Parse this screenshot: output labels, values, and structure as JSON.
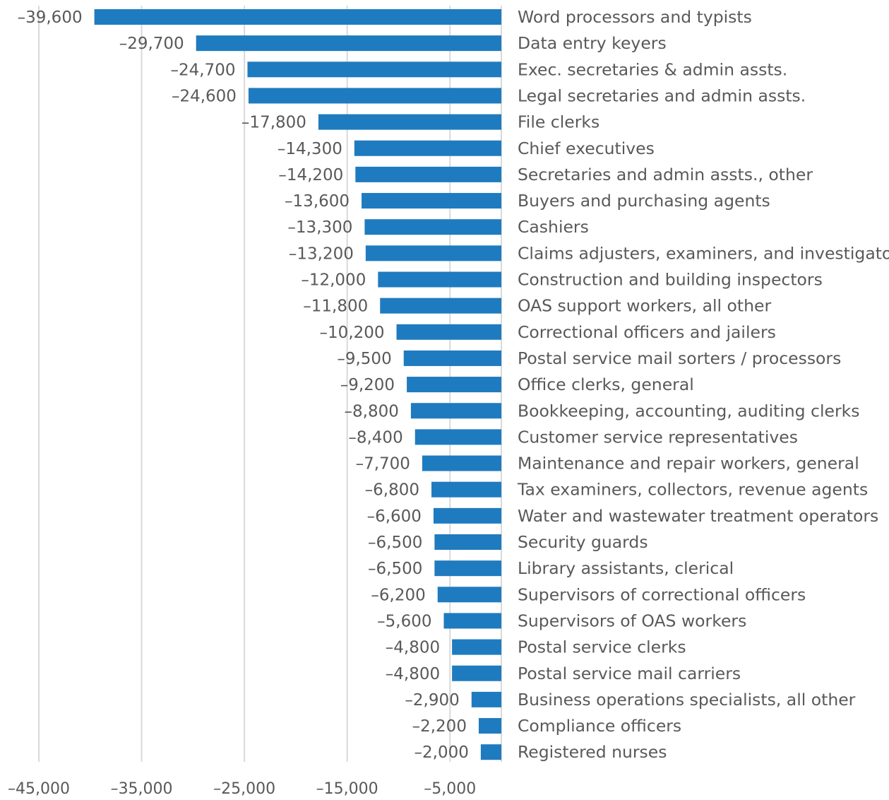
{
  "chart_data": {
    "type": "bar",
    "orientation": "horizontal",
    "title": "",
    "xlabel": "",
    "ylabel": "",
    "xlim": [
      -45000,
      0
    ],
    "xticks": [
      -45000,
      -35000,
      -25000,
      -15000,
      -5000
    ],
    "xtick_labels": [
      "–45,000",
      "–35,000",
      "–25,000",
      "–15,000",
      "–5,000"
    ],
    "grid": true,
    "legend": "none",
    "bar_color": "#1f7bbf",
    "categories": [
      "Word processors and typists",
      "Data entry keyers",
      "Exec. secretaries & admin assts.",
      "Legal secretaries and admin assts.",
      "File clerks",
      "Chief executives",
      "Secretaries and admin assts., other",
      "Buyers and purchasing agents",
      "Cashiers",
      "Claims adjusters, examiners, and investigators",
      "Construction and building inspectors",
      "OAS support workers, all other",
      "Correctional officers and jailers",
      "Postal service mail sorters / processors",
      "Office clerks, general",
      "Bookkeeping, accounting, auditing clerks",
      "Customer service representatives",
      "Maintenance and repair workers, general",
      "Tax examiners, collectors, revenue agents",
      "Water and wastewater treatment operators",
      "Security guards",
      "Library assistants, clerical",
      "Supervisors of correctional officers",
      "Supervisors of OAS workers",
      "Postal service clerks",
      "Postal service mail carriers",
      "Business operations specialists, all other",
      "Compliance officers",
      "Registered nurses"
    ],
    "values": [
      -39600,
      -29700,
      -24700,
      -24600,
      -17800,
      -14300,
      -14200,
      -13600,
      -13300,
      -13200,
      -12000,
      -11800,
      -10200,
      -9500,
      -9200,
      -8800,
      -8400,
      -7700,
      -6800,
      -6600,
      -6500,
      -6500,
      -6200,
      -5600,
      -4800,
      -4800,
      -2900,
      -2200,
      -2000
    ],
    "value_labels": [
      "–39,600",
      "–29,700",
      "–24,700",
      "–24,600",
      "–17,800",
      "–14,300",
      "–14,200",
      "–13,600",
      "–13,300",
      "–13,200",
      "–12,000",
      "–11,800",
      "–10,200",
      "–9,500",
      "–9,200",
      "–8,800",
      "–8,400",
      "–7,700",
      "–6,800",
      "–6,600",
      "–6,500",
      "–6,500",
      "–6,200",
      "–5,600",
      "–4,800",
      "–4,800",
      "–2,900",
      "–2,200",
      "–2,000"
    ]
  }
}
